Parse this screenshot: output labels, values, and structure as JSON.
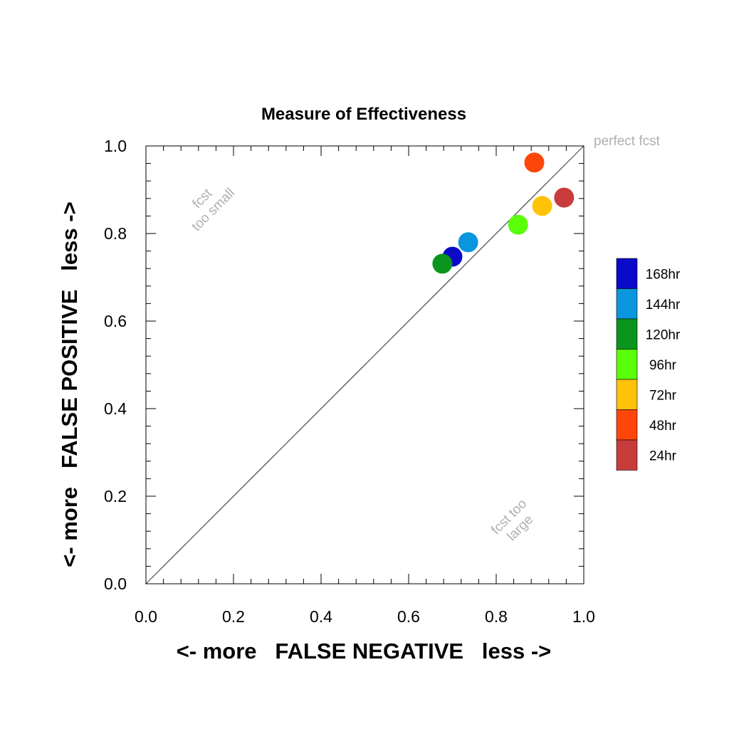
{
  "chart_data": {
    "type": "scatter",
    "title": "Measure of Effectiveness",
    "xlabel": "<- more   FALSE NEGATIVE   less ->",
    "ylabel": "<- more   FALSE POSITIVE   less ->",
    "xlim": [
      0.0,
      1.0
    ],
    "ylim": [
      0.0,
      1.0
    ],
    "xticks": [
      "0.0",
      "0.2",
      "0.4",
      "0.6",
      "0.8",
      "1.0"
    ],
    "yticks": [
      "0.0",
      "0.2",
      "0.4",
      "0.6",
      "0.8",
      "1.0"
    ],
    "grid": false,
    "legend_position": "right",
    "reference_line": "diagonal y = x",
    "annotations": {
      "perfect": "perfect fcst",
      "too_small": [
        "fcst",
        "too small"
      ],
      "too_large": [
        "fcst too",
        "large"
      ]
    },
    "series": [
      {
        "name": "168hr",
        "color": "#0a0ac8",
        "x": 0.7,
        "y": 0.747
      },
      {
        "name": "144hr",
        "color": "#0a96dc",
        "x": 0.736,
        "y": 0.78
      },
      {
        "name": "120hr",
        "color": "#0a961e",
        "x": 0.677,
        "y": 0.731
      },
      {
        "name": "96hr",
        "color": "#5aff0a",
        "x": 0.85,
        "y": 0.82
      },
      {
        "name": "72hr",
        "color": "#ffc30a",
        "x": 0.905,
        "y": 0.863
      },
      {
        "name": "48hr",
        "color": "#ff460a",
        "x": 0.887,
        "y": 0.962
      },
      {
        "name": "24hr",
        "color": "#c83c3c",
        "x": 0.955,
        "y": 0.882
      }
    ]
  }
}
